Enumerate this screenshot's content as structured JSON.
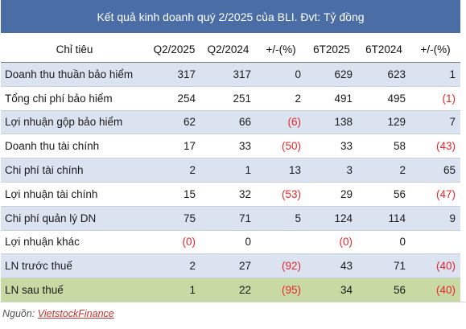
{
  "title": "Kết quả kinh doanh quý 2/2025 của BLI. Đvt: Tỷ đồng",
  "columns": [
    "Chỉ tiêu",
    "Q2/2025",
    "Q2/2024",
    "+/-(%)",
    "6T2025",
    "6T2024",
    "+/-(%)"
  ],
  "rows": [
    {
      "label": "Doanh thu thuần bảo hiểm",
      "cells": [
        "317",
        "317",
        "0",
        "629",
        "623",
        "1"
      ]
    },
    {
      "label": "Tổng chi phí bảo hiểm",
      "cells": [
        "254",
        "251",
        "2",
        "491",
        "495",
        "(1)"
      ]
    },
    {
      "label": "Lợi nhuận gộp  bảo hiểm",
      "cells": [
        "62",
        "66",
        "(6)",
        "138",
        "129",
        "7"
      ]
    },
    {
      "label": "Doanh thu tài chính",
      "cells": [
        "17",
        "33",
        "(50)",
        "33",
        "58",
        "(43)"
      ]
    },
    {
      "label": "Chi phí tài chính",
      "cells": [
        "2",
        "1",
        "13",
        "3",
        "2",
        "65"
      ]
    },
    {
      "label": "Lợi nhuận tài chính",
      "cells": [
        "15",
        "32",
        "(53)",
        "29",
        "56",
        "(47)"
      ]
    },
    {
      "label": "Chi phí quản lý DN",
      "cells": [
        "75",
        "71",
        "5",
        "124",
        "114",
        "9"
      ]
    },
    {
      "label": "Lợi nhuận khác",
      "cells": [
        "(0)",
        "0",
        "",
        "(0)",
        "0",
        ""
      ]
    },
    {
      "label": "LN trước thuế",
      "cells": [
        "2",
        "27",
        "(92)",
        "43",
        "71",
        "(40)"
      ]
    },
    {
      "label": "LN sau thuế",
      "cells": [
        "1",
        "22",
        "(95)",
        "34",
        "56",
        "(40)"
      ]
    }
  ],
  "colors": {
    "header_bg": "#4a6da6",
    "alt_row_bg": "#dbe3f1",
    "highlight_row_bg": "#c9d9a4",
    "negative_text": "#e8262b"
  },
  "source": {
    "prefix": "Nguồn: ",
    "link": "VietstockFinance"
  }
}
